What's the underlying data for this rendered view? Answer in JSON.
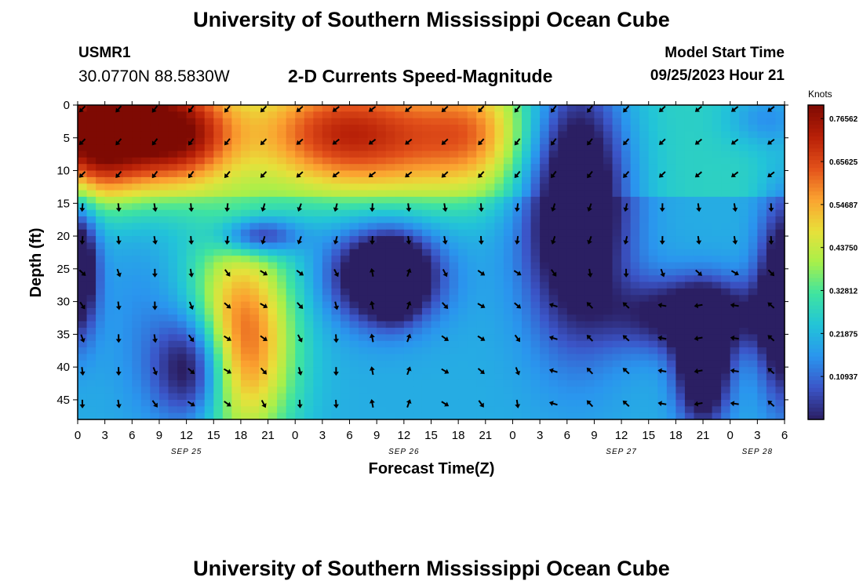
{
  "header": {
    "title": "University of Southern Mississippi Ocean Cube",
    "station_id": "USMR1",
    "station_coords": "30.0770N  88.5830W",
    "chart_title": "2-D Currents Speed-Magnitude",
    "model_start_label": "Model Start Time",
    "model_start_value": "09/25/2023 Hour 21"
  },
  "footer": {
    "title": "University of Southern Mississippi Ocean Cube"
  },
  "colors": {
    "scale": [
      "#2b1f63",
      "#3b55c8",
      "#2a95ee",
      "#22c4d8",
      "#3fe4a0",
      "#a8f04a",
      "#e8e03a",
      "#fba230",
      "#e2501a",
      "#b71f07",
      "#7e0a03"
    ],
    "arrow": "#000000"
  },
  "chart_data": {
    "type": "heatmap",
    "title": "2-D Currents Speed-Magnitude",
    "xlabel": "Forecast Time(Z)",
    "ylabel": "Depth (ft)",
    "x_ticks": [
      "0",
      "3",
      "6",
      "9",
      "12",
      "15",
      "18",
      "21",
      "0",
      "3",
      "6",
      "9",
      "12",
      "15",
      "18",
      "21",
      "0",
      "3",
      "6",
      "9",
      "12",
      "15",
      "18",
      "21",
      "0",
      "3",
      "6"
    ],
    "date_labels": [
      {
        "label": "SEP 25",
        "hour": 12
      },
      {
        "label": "SEP 26",
        "hour": 36
      },
      {
        "label": "SEP 27",
        "hour": 60
      },
      {
        "label": "SEP 28",
        "hour": 75
      }
    ],
    "x_range_hours": [
      0,
      78
    ],
    "y_ticks": [
      0,
      5,
      10,
      15,
      20,
      25,
      30,
      35,
      40,
      45
    ],
    "ylim": [
      0,
      48
    ],
    "y_inverted": true,
    "colorbar": {
      "unit": "Knots",
      "ticks": [
        "0.76562",
        "0.65625",
        "0.54687",
        "0.43750",
        "0.32812",
        "0.21875",
        "0.10937"
      ],
      "range": [
        0.0,
        0.8
      ]
    },
    "speed_blobs_knots": [
      {
        "hour": 6,
        "depth": 3,
        "speed": 0.8,
        "sh": 7,
        "sd": 7
      },
      {
        "hour": 1,
        "depth": 6,
        "speed": 0.55,
        "sh": 4,
        "sd": 6
      },
      {
        "hour": 12,
        "depth": 5,
        "speed": 0.5,
        "sh": 4,
        "sd": 5
      },
      {
        "hour": 27,
        "depth": 4,
        "speed": 0.55,
        "sh": 6,
        "sd": 6
      },
      {
        "hour": 36,
        "depth": 5,
        "speed": 0.6,
        "sh": 8,
        "sd": 7
      },
      {
        "hour": 44,
        "depth": 4,
        "speed": 0.45,
        "sh": 4,
        "sd": 6
      },
      {
        "hour": 18,
        "depth": 36,
        "speed": 0.7,
        "sh": 4,
        "sd": 11
      },
      {
        "hour": 7,
        "depth": 33,
        "speed": 0.15,
        "sh": 3,
        "sd": 10
      },
      {
        "hour": 20,
        "depth": 20,
        "speed": -0.1,
        "sh": 3,
        "sd": 2
      },
      {
        "hour": 13,
        "depth": 40,
        "speed": -0.18,
        "sh": 3,
        "sd": 6
      },
      {
        "hour": 34,
        "depth": 26,
        "speed": -0.25,
        "sh": 4,
        "sd": 5
      },
      {
        "hour": 35,
        "depth": 27,
        "speed": -0.2,
        "sh": 1.5,
        "sd": 3
      },
      {
        "hour": 55,
        "depth": 15,
        "speed": -0.2,
        "sh": 4,
        "sd": 14
      },
      {
        "hour": 68,
        "depth": 32,
        "speed": -0.1,
        "sh": 6,
        "sd": 4
      },
      {
        "hour": 69,
        "depth": 40,
        "speed": -0.22,
        "sh": 2,
        "sd": 6
      },
      {
        "hour": 0,
        "depth": 25,
        "speed": -0.2,
        "sh": 1.5,
        "sd": 7
      },
      {
        "hour": 78,
        "depth": 30,
        "speed": -0.2,
        "sh": 2,
        "sd": 10
      },
      {
        "hour": 76,
        "depth": 2,
        "speed": 0.15,
        "sh": 3,
        "sd": 3
      }
    ],
    "arrow_hours": [
      0,
      4,
      8,
      12,
      16,
      20,
      24,
      28,
      32,
      36,
      40,
      44,
      48,
      52,
      56,
      60,
      64,
      68,
      72,
      76
    ],
    "arrow_depths": [
      0,
      5,
      10,
      15,
      20,
      25,
      30,
      35,
      40,
      45
    ]
  }
}
